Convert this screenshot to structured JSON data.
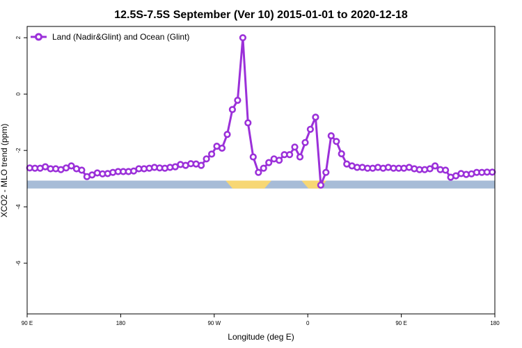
{
  "chart_data": {
    "type": "line",
    "title": "12.5S-7.5S September (Ver 10)   2015-01-01 to 2020-12-18",
    "xlabel": "Longitude (deg E)",
    "ylabel": "XCO2 - MLO trend (ppm)",
    "xlim": [
      90,
      540
    ],
    "ylim": [
      -7.8,
      2.4
    ],
    "x_ticks": [
      {
        "value": 90,
        "label": "90 E"
      },
      {
        "value": 180,
        "label": "180"
      },
      {
        "value": 270,
        "label": "90 W"
      },
      {
        "value": 360,
        "label": "0"
      },
      {
        "value": 450,
        "label": "90 E"
      },
      {
        "value": 540,
        "label": "180"
      }
    ],
    "y_ticks": [
      {
        "value": 2,
        "label": "2"
      },
      {
        "value": 0,
        "label": "0"
      },
      {
        "value": -2,
        "label": "-2"
      },
      {
        "value": -4,
        "label": "-4"
      },
      {
        "value": -6,
        "label": "-6"
      }
    ],
    "legend": {
      "position": "top-left"
    },
    "colors": {
      "series": "#9b30d9",
      "ocean": "#a7bcd7",
      "land": "#f7d774"
    },
    "land_strip": {
      "y_top": -3.07,
      "y_bottom": -3.35,
      "land_segments": [
        [
          281,
          325
        ],
        [
          354,
          378
        ]
      ]
    },
    "series": [
      {
        "name": "Land (Nadir&Glint) and Ocean (Glint)",
        "x": [
          92.5,
          97.5,
          102.5,
          107.5,
          112.5,
          117.5,
          122.5,
          127.5,
          132.5,
          137.5,
          142.5,
          147.5,
          152.5,
          157.5,
          162.5,
          167.5,
          172.5,
          177.5,
          182.5,
          187.5,
          192.5,
          197.5,
          202.5,
          207.5,
          212.5,
          217.5,
          222.5,
          227.5,
          232.5,
          237.5,
          242.5,
          247.5,
          252.5,
          257.5,
          262.5,
          267.5,
          272.5,
          277.5,
          282.5,
          287.5,
          292.5,
          297.5,
          302.5,
          307.5,
          312.5,
          317.5,
          322.5,
          327.5,
          332.5,
          337.5,
          342.5,
          347.5,
          352.5,
          357.5,
          362.5,
          367.5,
          372.5,
          377.5,
          382.5,
          387.5,
          392.5,
          397.5,
          402.5,
          407.5,
          412.5,
          417.5,
          422.5,
          427.5,
          432.5,
          437.5,
          442.5,
          447.5,
          452.5,
          457.5,
          462.5,
          467.5,
          472.5,
          477.5,
          482.5,
          487.5,
          492.5,
          497.5,
          502.5,
          507.5,
          512.5,
          517.5,
          522.5,
          527.5,
          532.5,
          537.5
        ],
        "values": [
          -2.62,
          -2.63,
          -2.63,
          -2.58,
          -2.65,
          -2.65,
          -2.68,
          -2.62,
          -2.55,
          -2.65,
          -2.7,
          -2.93,
          -2.87,
          -2.8,
          -2.83,
          -2.82,
          -2.78,
          -2.75,
          -2.75,
          -2.75,
          -2.73,
          -2.65,
          -2.65,
          -2.63,
          -2.6,
          -2.62,
          -2.63,
          -2.6,
          -2.58,
          -2.5,
          -2.53,
          -2.47,
          -2.48,
          -2.53,
          -2.3,
          -2.13,
          -1.85,
          -1.92,
          -1.43,
          -0.55,
          -0.22,
          2.0,
          -1.02,
          -2.23,
          -2.78,
          -2.63,
          -2.43,
          -2.3,
          -2.35,
          -2.15,
          -2.15,
          -1.88,
          -2.23,
          -1.72,
          -1.25,
          -0.82,
          -3.23,
          -2.78,
          -1.48,
          -1.68,
          -2.12,
          -2.48,
          -2.55,
          -2.6,
          -2.6,
          -2.63,
          -2.63,
          -2.6,
          -2.63,
          -2.6,
          -2.63,
          -2.63,
          -2.63,
          -2.6,
          -2.65,
          -2.68,
          -2.68,
          -2.65,
          -2.55,
          -2.68,
          -2.7,
          -2.95,
          -2.9,
          -2.82,
          -2.85,
          -2.83,
          -2.78,
          -2.78,
          -2.77,
          -2.77
        ]
      }
    ]
  }
}
